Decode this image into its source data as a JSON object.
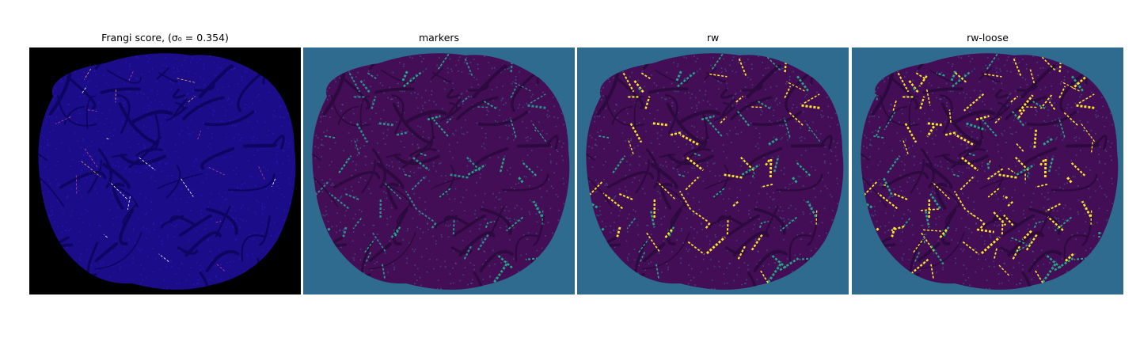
{
  "figure": {
    "panels": [
      {
        "id": "frangi",
        "title": "Frangi score, (σ₀ = 0.354)",
        "background": "#000000",
        "blob_fill": "#1b0c8a",
        "texture": "#2e1bb8",
        "vessel_stroke": "#0d0560",
        "highlight_colors": [
          "#c0408f",
          "#e8a05a",
          "#ffffff"
        ]
      },
      {
        "id": "markers",
        "title": "markers",
        "background": "#2e6b8e",
        "blob_fill": "#440e57",
        "texture": "#3b5e8c",
        "vessel_stroke": "#2d0a3e",
        "highlight_colors": [
          "#22a884",
          "#2a8f8a"
        ]
      },
      {
        "id": "rw",
        "title": "rw",
        "background": "#2e6b8e",
        "blob_fill": "#440e57",
        "texture": "#3b5e8c",
        "vessel_stroke": "#2d0a3e",
        "highlight_colors": [
          "#22a884",
          "#fde725"
        ]
      },
      {
        "id": "rw-loose",
        "title": "rw-loose",
        "background": "#2e6b8e",
        "blob_fill": "#440e57",
        "texture": "#3b5e8c",
        "vessel_stroke": "#2d0a3e",
        "highlight_colors": [
          "#22a884",
          "#fde725",
          "#fde725"
        ]
      }
    ]
  }
}
